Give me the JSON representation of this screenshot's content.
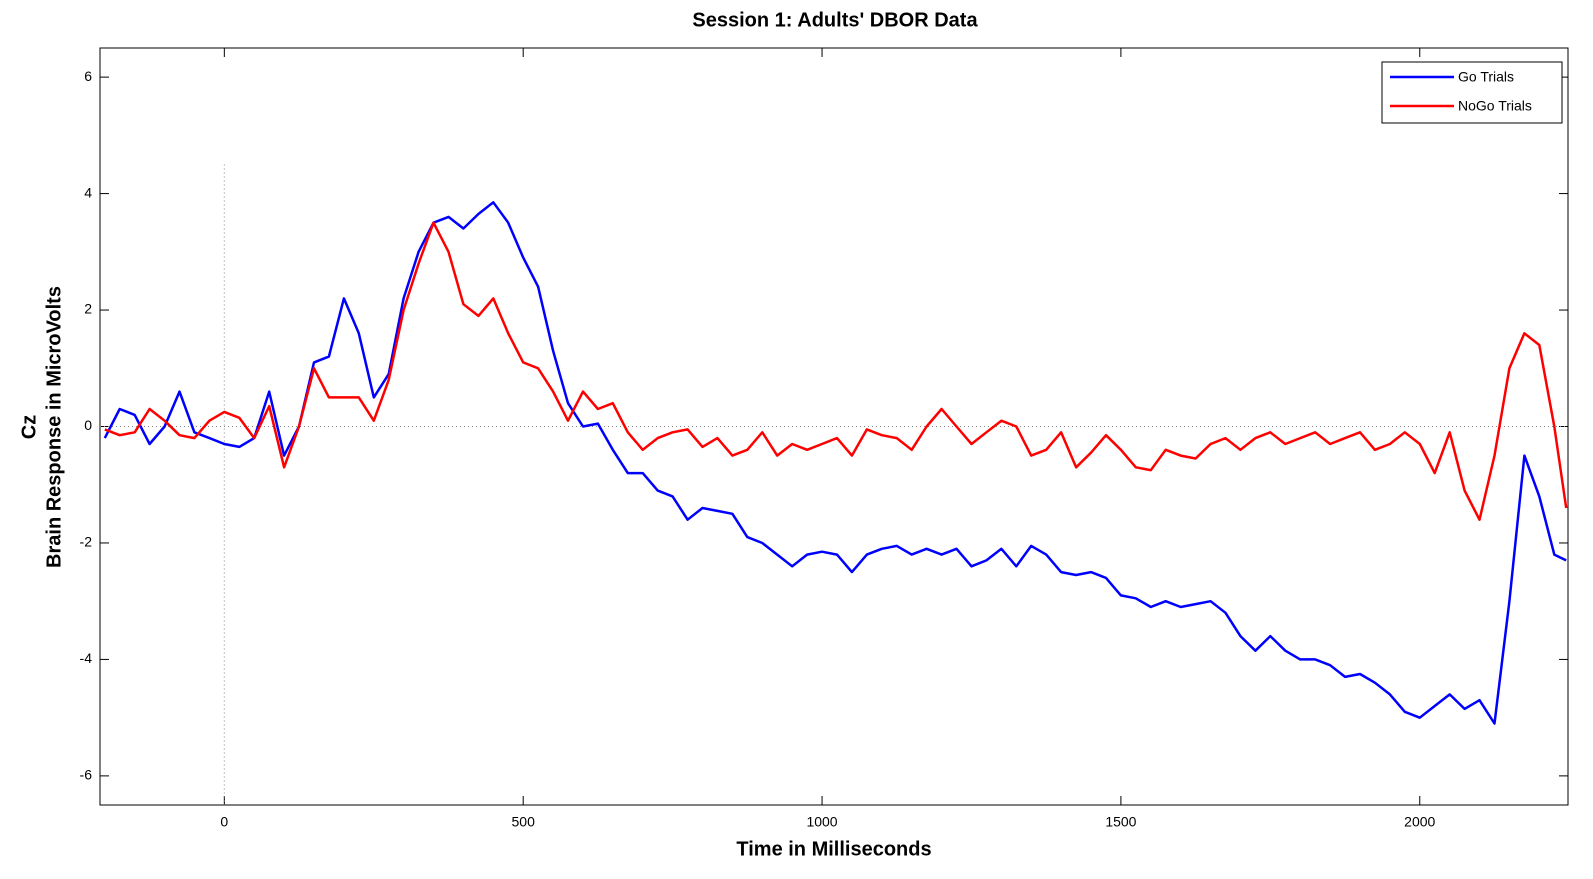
{
  "chart_data": {
    "type": "line",
    "title": "Session 1: Adults' DBOR Data",
    "ylabel_lines": [
      "Cz",
      "Brain Response in MicroVolts"
    ],
    "xlabel": "Time in Milliseconds",
    "x": [
      -200,
      -175,
      -150,
      -125,
      -100,
      -75,
      -50,
      -25,
      0,
      25,
      50,
      75,
      100,
      125,
      150,
      175,
      200,
      225,
      250,
      275,
      300,
      325,
      350,
      375,
      400,
      425,
      450,
      475,
      500,
      525,
      550,
      575,
      600,
      625,
      650,
      675,
      700,
      725,
      750,
      775,
      800,
      825,
      850,
      875,
      900,
      925,
      950,
      975,
      1000,
      1025,
      1050,
      1075,
      1100,
      1125,
      1150,
      1175,
      1200,
      1225,
      1250,
      1275,
      1300,
      1325,
      1350,
      1375,
      1400,
      1425,
      1450,
      1475,
      1500,
      1525,
      1550,
      1575,
      1600,
      1625,
      1650,
      1675,
      1700,
      1725,
      1750,
      1775,
      1800,
      1825,
      1850,
      1875,
      1900,
      1925,
      1950,
      1975,
      2000,
      2025,
      2050,
      2075,
      2100,
      2125,
      2150,
      2175,
      2200,
      2225,
      2245
    ],
    "series": [
      {
        "name": "Go Trials",
        "color": "#0000ff",
        "values": [
          -0.2,
          0.3,
          0.2,
          -0.3,
          0.0,
          0.6,
          -0.1,
          -0.2,
          -0.3,
          -0.35,
          -0.2,
          0.6,
          -0.5,
          0.0,
          1.1,
          1.2,
          2.2,
          1.6,
          0.5,
          0.9,
          2.2,
          3.0,
          3.5,
          3.6,
          3.4,
          3.65,
          3.85,
          3.5,
          2.9,
          2.4,
          1.3,
          0.4,
          0.0,
          0.05,
          -0.4,
          -0.8,
          -0.8,
          -1.1,
          -1.2,
          -1.6,
          -1.4,
          -1.45,
          -1.5,
          -1.9,
          -2.0,
          -2.2,
          -2.4,
          -2.2,
          -2.15,
          -2.2,
          -2.5,
          -2.2,
          -2.1,
          -2.05,
          -2.2,
          -2.1,
          -2.2,
          -2.1,
          -2.4,
          -2.3,
          -2.1,
          -2.4,
          -2.05,
          -2.2,
          -2.5,
          -2.55,
          -2.5,
          -2.6,
          -2.9,
          -2.95,
          -3.1,
          -3.0,
          -3.1,
          -3.05,
          -3.0,
          -3.2,
          -3.6,
          -3.85,
          -3.6,
          -3.85,
          -4.0,
          -4.0,
          -4.1,
          -4.3,
          -4.25,
          -4.4,
          -4.6,
          -4.9,
          -5.0,
          -4.8,
          -4.6,
          -4.85,
          -4.7,
          -5.1,
          -3.0,
          -0.5,
          -1.2,
          -2.2,
          -2.3
        ]
      },
      {
        "name": "NoGo Trials",
        "color": "#ff0000",
        "values": [
          -0.05,
          -0.15,
          -0.1,
          0.3,
          0.1,
          -0.15,
          -0.2,
          0.1,
          0.25,
          0.15,
          -0.2,
          0.35,
          -0.7,
          0.0,
          1.0,
          0.5,
          0.5,
          0.5,
          0.1,
          0.8,
          2.0,
          2.8,
          3.5,
          3.0,
          2.1,
          1.9,
          2.2,
          1.6,
          1.1,
          1.0,
          0.6,
          0.1,
          0.6,
          0.3,
          0.4,
          -0.1,
          -0.4,
          -0.2,
          -0.1,
          -0.05,
          -0.35,
          -0.2,
          -0.5,
          -0.4,
          -0.1,
          -0.5,
          -0.3,
          -0.4,
          -0.3,
          -0.2,
          -0.5,
          -0.05,
          -0.15,
          -0.2,
          -0.4,
          0.0,
          0.3,
          0.0,
          -0.3,
          -0.1,
          0.1,
          0.0,
          -0.5,
          -0.4,
          -0.1,
          -0.7,
          -0.45,
          -0.15,
          -0.4,
          -0.7,
          -0.75,
          -0.4,
          -0.5,
          -0.55,
          -0.3,
          -0.2,
          -0.4,
          -0.2,
          -0.1,
          -0.3,
          -0.2,
          -0.1,
          -0.3,
          -0.2,
          -0.1,
          -0.4,
          -0.3,
          -0.1,
          -0.3,
          -0.8,
          -0.1,
          -1.1,
          -1.6,
          -0.5,
          1.0,
          1.6,
          1.4,
          0.0,
          -1.4
        ]
      }
    ],
    "xlim": [
      -208,
      2248
    ],
    "ylim": [
      -6.5,
      6.5
    ],
    "xticks": [
      0,
      500,
      1000,
      1500,
      2000
    ],
    "yticks": [
      -6,
      -4,
      -2,
      0,
      2,
      4,
      6
    ],
    "reference_lines": {
      "y": 0,
      "x": 0,
      "x_ymax": 4.5
    },
    "legend": "top-right"
  }
}
